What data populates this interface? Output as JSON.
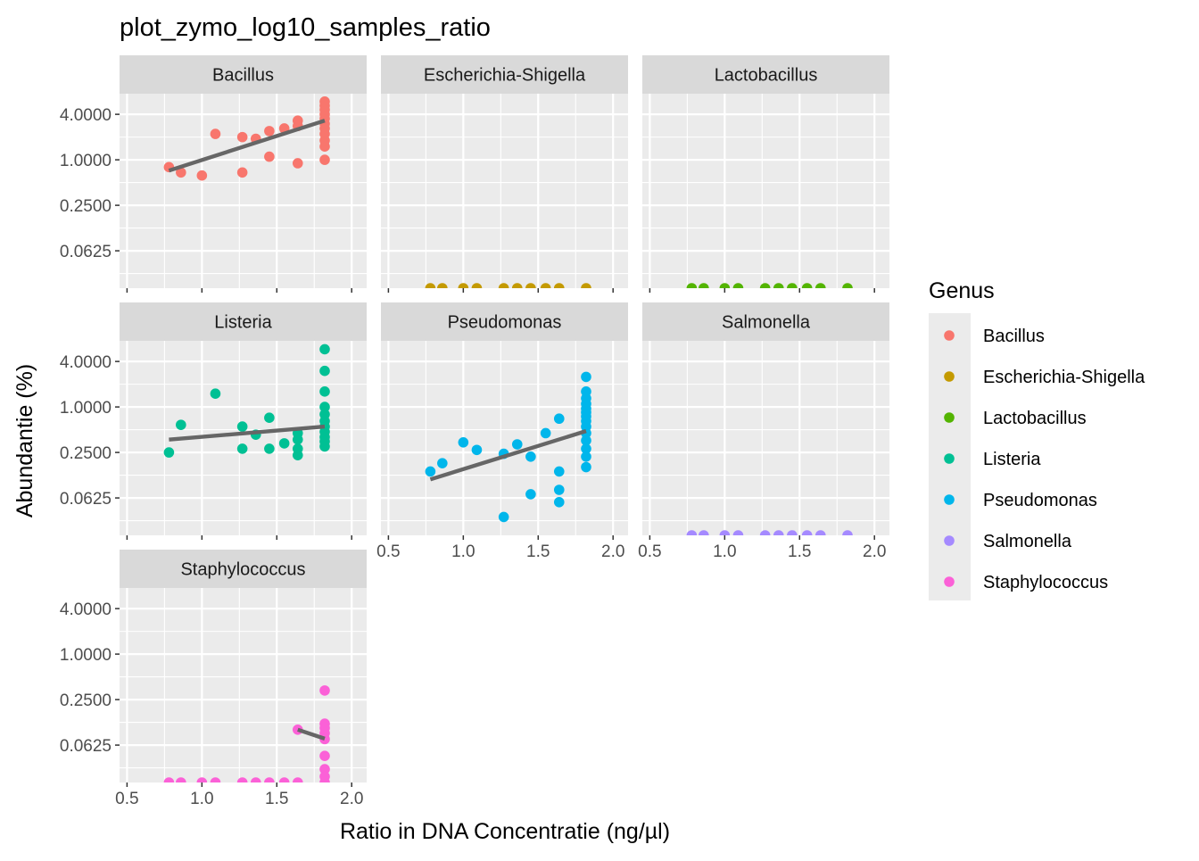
{
  "chart_data": {
    "type": "scatter",
    "title": "plot_zymo_log10_samples_ratio",
    "xlabel": "Ratio in DNA Concentratie (ng/µl)",
    "ylabel": "Abundantie (%)",
    "y_scale": "log10",
    "x_ticks": [
      "0.5",
      "1.0",
      "1.5",
      "2.0"
    ],
    "y_ticks": [
      "0.0625",
      "0.2500",
      "1.0000",
      "4.0000"
    ],
    "xlim": [
      0.45,
      2.1
    ],
    "ylim": [
      0.02,
      7.5
    ],
    "grid": true,
    "facet_by": "Genus",
    "legend": {
      "title": "Genus",
      "position": "right",
      "entries": [
        {
          "label": "Bacillus",
          "color": "#F8766D"
        },
        {
          "label": "Escherichia-Shigella",
          "color": "#C49A00"
        },
        {
          "label": "Lactobacillus",
          "color": "#53B400"
        },
        {
          "label": "Listeria",
          "color": "#00C094"
        },
        {
          "label": "Pseudomonas",
          "color": "#00B6EB"
        },
        {
          "label": "Salmonella",
          "color": "#A58AFF"
        },
        {
          "label": "Staphylococcus",
          "color": "#FB61D7"
        }
      ]
    },
    "panels": [
      {
        "name": "Bacillus",
        "color": "#F8766D",
        "points": [
          [
            0.78,
            0.8
          ],
          [
            0.86,
            0.68
          ],
          [
            1.0,
            0.62
          ],
          [
            1.09,
            2.2
          ],
          [
            1.27,
            0.68
          ],
          [
            1.27,
            2.0
          ],
          [
            1.36,
            1.9
          ],
          [
            1.45,
            1.1
          ],
          [
            1.45,
            2.4
          ],
          [
            1.55,
            2.6
          ],
          [
            1.64,
            3.3
          ],
          [
            1.64,
            2.8
          ],
          [
            1.64,
            0.9
          ],
          [
            1.82,
            1.0
          ],
          [
            1.82,
            1.5
          ],
          [
            1.82,
            1.8
          ],
          [
            1.82,
            2.2
          ],
          [
            1.82,
            2.6
          ],
          [
            1.82,
            3.0
          ],
          [
            1.82,
            3.5
          ],
          [
            1.82,
            4.0
          ],
          [
            1.82,
            4.6
          ],
          [
            1.82,
            5.2
          ],
          [
            1.82,
            5.9
          ]
        ],
        "trend": [
          [
            0.78,
            0.72
          ],
          [
            1.82,
            3.3
          ]
        ]
      },
      {
        "name": "Escherichia-Shigella",
        "color": "#C49A00",
        "points": [
          [
            0.78,
            0.02
          ],
          [
            0.86,
            0.02
          ],
          [
            1.0,
            0.02
          ],
          [
            1.09,
            0.02
          ],
          [
            1.27,
            0.02
          ],
          [
            1.36,
            0.02
          ],
          [
            1.45,
            0.02
          ],
          [
            1.55,
            0.02
          ],
          [
            1.64,
            0.02
          ],
          [
            1.82,
            0.02
          ]
        ],
        "trend": []
      },
      {
        "name": "Lactobacillus",
        "color": "#53B400",
        "points": [
          [
            0.78,
            0.02
          ],
          [
            0.86,
            0.02
          ],
          [
            1.0,
            0.02
          ],
          [
            1.09,
            0.02
          ],
          [
            1.27,
            0.02
          ],
          [
            1.36,
            0.02
          ],
          [
            1.45,
            0.02
          ],
          [
            1.55,
            0.02
          ],
          [
            1.64,
            0.02
          ],
          [
            1.82,
            0.02
          ]
        ],
        "trend": []
      },
      {
        "name": "Listeria",
        "color": "#00C094",
        "points": [
          [
            0.78,
            0.25
          ],
          [
            0.86,
            0.58
          ],
          [
            1.09,
            1.5
          ],
          [
            1.27,
            0.55
          ],
          [
            1.27,
            0.28
          ],
          [
            1.36,
            0.43
          ],
          [
            1.45,
            0.72
          ],
          [
            1.45,
            0.28
          ],
          [
            1.55,
            0.33
          ],
          [
            1.64,
            0.37
          ],
          [
            1.64,
            0.28
          ],
          [
            1.64,
            0.23
          ],
          [
            1.64,
            0.45
          ],
          [
            1.82,
            5.8
          ],
          [
            1.82,
            3.0
          ],
          [
            1.82,
            1.6
          ],
          [
            1.82,
            1.0
          ],
          [
            1.82,
            0.8
          ],
          [
            1.82,
            0.65
          ],
          [
            1.82,
            0.55
          ],
          [
            1.82,
            0.47
          ],
          [
            1.82,
            0.4
          ],
          [
            1.82,
            0.35
          ],
          [
            1.82,
            0.3
          ]
        ],
        "trend": [
          [
            0.78,
            0.37
          ],
          [
            1.82,
            0.55
          ]
        ]
      },
      {
        "name": "Pseudomonas",
        "color": "#00B6EB",
        "points": [
          [
            0.78,
            0.14
          ],
          [
            0.86,
            0.18
          ],
          [
            1.0,
            0.34
          ],
          [
            1.09,
            0.27
          ],
          [
            1.27,
            0.035
          ],
          [
            1.27,
            0.24
          ],
          [
            1.36,
            0.32
          ],
          [
            1.45,
            0.07
          ],
          [
            1.45,
            0.22
          ],
          [
            1.55,
            0.45
          ],
          [
            1.64,
            0.055
          ],
          [
            1.64,
            0.08
          ],
          [
            1.64,
            0.14
          ],
          [
            1.64,
            0.7
          ],
          [
            1.82,
            2.5
          ],
          [
            1.82,
            1.6
          ],
          [
            1.82,
            1.3
          ],
          [
            1.82,
            1.1
          ],
          [
            1.82,
            0.95
          ],
          [
            1.82,
            0.85
          ],
          [
            1.82,
            0.75
          ],
          [
            1.82,
            0.65
          ],
          [
            1.82,
            0.55
          ],
          [
            1.82,
            0.45
          ],
          [
            1.82,
            0.36
          ],
          [
            1.82,
            0.28
          ],
          [
            1.82,
            0.22
          ],
          [
            1.82,
            0.16
          ]
        ],
        "trend": [
          [
            0.78,
            0.11
          ],
          [
            1.82,
            0.48
          ]
        ]
      },
      {
        "name": "Salmonella",
        "color": "#A58AFF",
        "points": [
          [
            0.78,
            0.02
          ],
          [
            0.86,
            0.02
          ],
          [
            1.0,
            0.02
          ],
          [
            1.09,
            0.02
          ],
          [
            1.27,
            0.02
          ],
          [
            1.36,
            0.02
          ],
          [
            1.45,
            0.02
          ],
          [
            1.55,
            0.02
          ],
          [
            1.64,
            0.02
          ],
          [
            1.82,
            0.02
          ]
        ],
        "trend": []
      },
      {
        "name": "Staphylococcus",
        "color": "#FB61D7",
        "points": [
          [
            0.78,
            0.02
          ],
          [
            0.86,
            0.02
          ],
          [
            1.0,
            0.02
          ],
          [
            1.09,
            0.02
          ],
          [
            1.27,
            0.02
          ],
          [
            1.36,
            0.02
          ],
          [
            1.45,
            0.02
          ],
          [
            1.55,
            0.02
          ],
          [
            1.64,
            0.02
          ],
          [
            1.64,
            0.1
          ],
          [
            1.82,
            0.33
          ],
          [
            1.82,
            0.12
          ],
          [
            1.82,
            0.105
          ],
          [
            1.82,
            0.09
          ],
          [
            1.82,
            0.075
          ],
          [
            1.82,
            0.045
          ],
          [
            1.82,
            0.03
          ],
          [
            1.82,
            0.024
          ],
          [
            1.82,
            0.02
          ]
        ],
        "trend": [
          [
            1.64,
            0.1
          ],
          [
            1.82,
            0.076
          ]
        ]
      }
    ]
  }
}
